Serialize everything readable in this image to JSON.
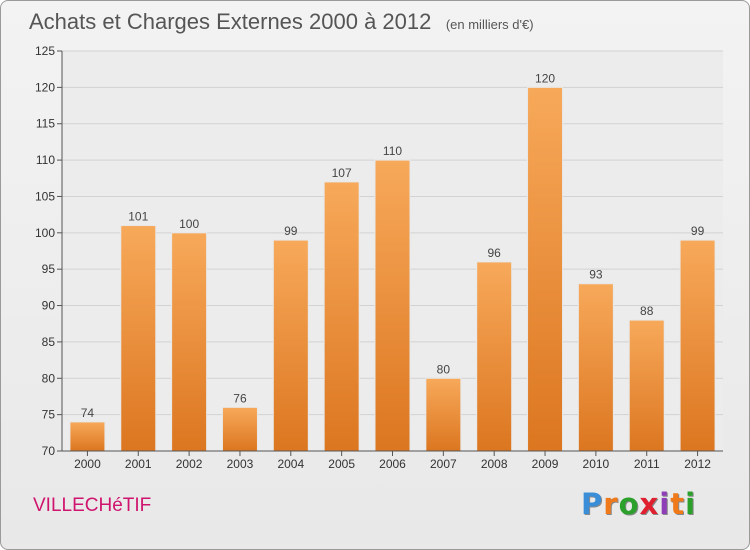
{
  "title": "Achats et Charges Externes 2000 à 2012",
  "unit": "(en milliers d'€)",
  "commune": "VILLECHéTIF",
  "logo": {
    "text": "Proxiti",
    "colors": [
      "#3a8ed8",
      "#f07a1a",
      "#2ba02b",
      "#e0202f",
      "#8e3fb8",
      "#f07a1a",
      "#2ba02b"
    ]
  },
  "chart_data": {
    "type": "bar",
    "title": "Achats et Charges Externes 2000 à 2012",
    "subtitle": "(en milliers d'€)",
    "categories": [
      "2000",
      "2001",
      "2002",
      "2003",
      "2004",
      "2005",
      "2006",
      "2007",
      "2008",
      "2009",
      "2010",
      "2011",
      "2012"
    ],
    "values": [
      74,
      101,
      100,
      76,
      99,
      107,
      110,
      80,
      96,
      120,
      93,
      88,
      99
    ],
    "ylim": [
      70,
      125
    ],
    "yticks": [
      70,
      75,
      80,
      85,
      90,
      95,
      100,
      105,
      110,
      115,
      120,
      125
    ],
    "grid": true,
    "bar_color": "#f0913a"
  }
}
